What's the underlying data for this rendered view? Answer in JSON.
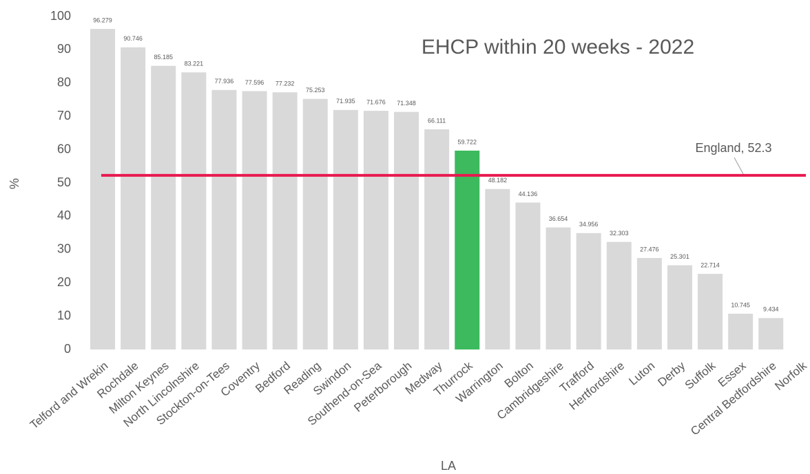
{
  "chart_data": {
    "type": "bar",
    "title": "EHCP within 20 weeks - 2022",
    "x_label": "LA",
    "y_label": "%",
    "categories": [
      "Telford and Wrekin",
      "Rochdale",
      "Milton Keynes",
      "North Lincolnshire",
      "Stockton-on-Tees",
      "Coventry",
      "Bedford",
      "Reading",
      "Swindon",
      "Southend-on-Sea",
      "Peterborough",
      "Medway",
      "Thurrock",
      "Warrington",
      "Bolton",
      "Cambridgeshire",
      "Trafford",
      "Hertfordshire",
      "Luton",
      "Derby",
      "Suffolk",
      "Essex",
      "Central Bedfordshire",
      "Norfolk"
    ],
    "values": [
      96.279,
      90.746,
      85.185,
      83.221,
      77.936,
      77.596,
      77.232,
      75.253,
      71.935,
      71.676,
      71.348,
      66.111,
      59.722,
      48.182,
      44.136,
      36.654,
      34.956,
      32.303,
      27.476,
      25.301,
      22.714,
      10.745,
      9.434,
      null
    ],
    "colors": [
      "#d9d9d9",
      "#d9d9d9",
      "#d9d9d9",
      "#d9d9d9",
      "#d9d9d9",
      "#d9d9d9",
      "#d9d9d9",
      "#d9d9d9",
      "#d9d9d9",
      "#d9d9d9",
      "#d9d9d9",
      "#d9d9d9",
      "#3dba5e",
      "#d9d9d9",
      "#d9d9d9",
      "#d9d9d9",
      "#d9d9d9",
      "#d9d9d9",
      "#d9d9d9",
      "#d9d9d9",
      "#d9d9d9",
      "#d9d9d9",
      "#d9d9d9",
      "#d9d9d9"
    ],
    "ylim": [
      0,
      100
    ],
    "yticks": [
      0,
      10,
      20,
      30,
      40,
      50,
      60,
      70,
      80,
      90,
      100
    ],
    "grid": false,
    "reference_line": {
      "value": 52.3,
      "label": "England, 52.3",
      "color": "#e8194f"
    }
  }
}
